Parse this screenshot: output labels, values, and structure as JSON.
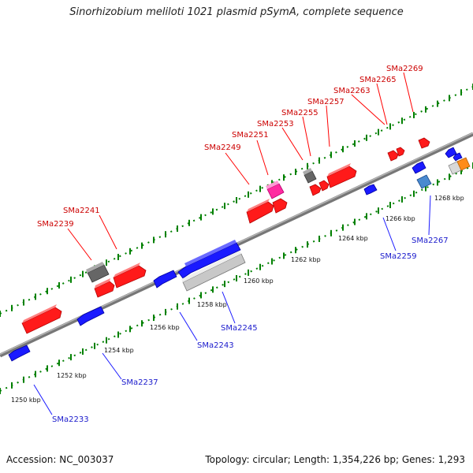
{
  "title": "Sinorhizobium meliloti 1021 plasmid pSymA, complete sequence",
  "footer": {
    "accession": "Accession: NC_003037",
    "info": "Topology: circular; Length: 1,354,226 bp; Genes: 1,293"
  },
  "colors": {
    "forward_gene": "#ff1a1a",
    "reverse_gene": "#1a1aff",
    "label_forward": "#cc0000",
    "label_reverse": "#1a1acc",
    "tick": "#008000",
    "backbone": "#888888"
  },
  "kbp_labels": [
    "1250 kbp",
    "1252 kbp",
    "1254 kbp",
    "1256 kbp",
    "1258 kbp",
    "1260 kbp",
    "1262 kbp",
    "1264 kbp",
    "1266 kbp",
    "1268 kbp"
  ],
  "forward_labels": [
    "SMa2239",
    "SMa2241",
    "SMa2249",
    "SMa2251",
    "SMa2253",
    "SMa2255",
    "SMa2257",
    "SMa2263",
    "SMa2265",
    "SMa2269"
  ],
  "reverse_labels": [
    "SMa2233",
    "SMa2237",
    "SMa2243",
    "SMa2245",
    "SMa2259",
    "SMa2267"
  ]
}
